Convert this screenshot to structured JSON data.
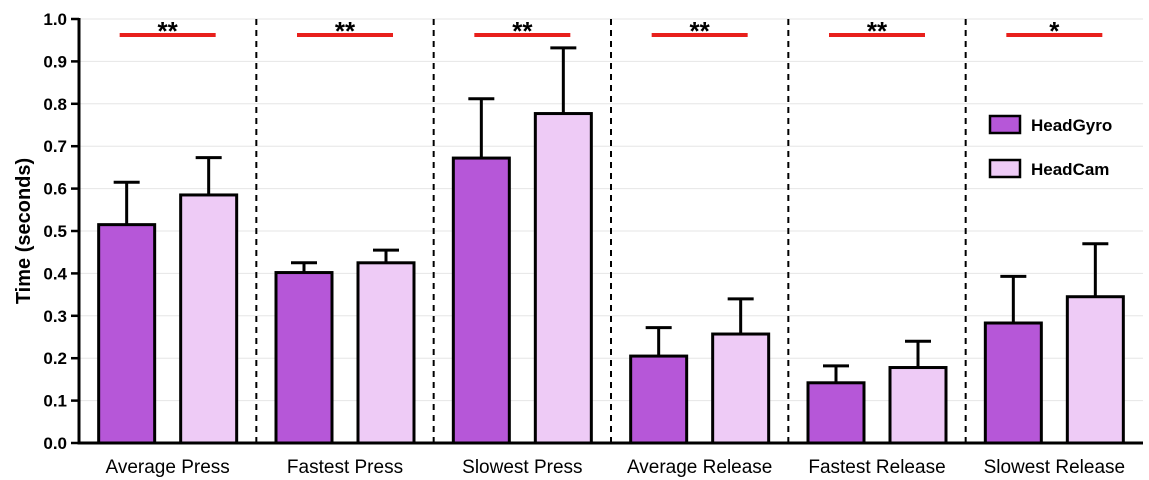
{
  "chart_data": {
    "type": "bar",
    "title": "",
    "xlabel": "",
    "ylabel": "Time (seconds)",
    "ylim": [
      0,
      1.0
    ],
    "yticks": [
      "0.0",
      "0.1",
      "0.2",
      "0.3",
      "0.4",
      "0.5",
      "0.6",
      "0.7",
      "0.8",
      "0.9",
      "1.0"
    ],
    "grid": true,
    "legend_position": "right",
    "categories": [
      "Average Press",
      "Fastest Press",
      "Slowest Press",
      "Average Release",
      "Fastest Release",
      "Slowest Release"
    ],
    "series": [
      {
        "name": "HeadGyro",
        "color": "#b657d8",
        "values": [
          0.515,
          0.402,
          0.672,
          0.205,
          0.142,
          0.283
        ],
        "error": [
          0.1,
          0.023,
          0.14,
          0.067,
          0.04,
          0.11
        ]
      },
      {
        "name": "HeadCam",
        "color": "#eecbf6",
        "values": [
          0.585,
          0.425,
          0.777,
          0.257,
          0.178,
          0.345
        ],
        "error": [
          0.088,
          0.03,
          0.155,
          0.083,
          0.062,
          0.125
        ]
      }
    ],
    "significance": [
      "**",
      "**",
      "**",
      "**",
      "**",
      "*"
    ],
    "significance_color": "#e8201c"
  }
}
